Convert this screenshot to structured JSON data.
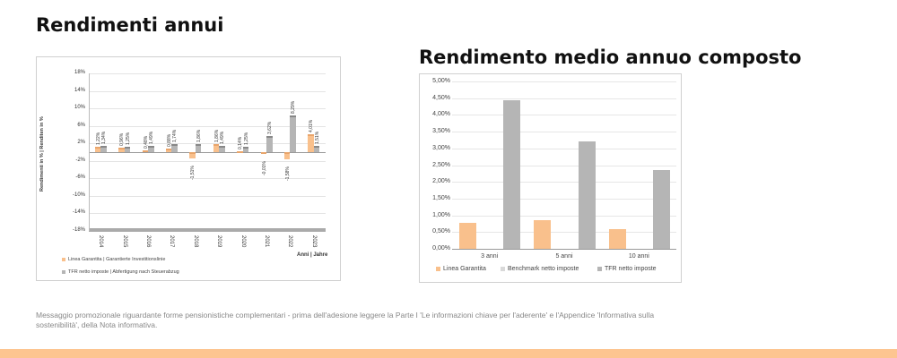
{
  "titles": {
    "left": "Rendimenti annui",
    "right": "Rendimento medio annuo composto"
  },
  "footer": {
    "text": "Messaggio promozionale riguardante forme pensionistiche complementari - prima dell'adesione leggere la Parte I 'Le informazioni chiave per l'aderente' e l'Appendice 'Informativa sulla sostenibilità', della Nota informativa."
  },
  "colors": {
    "orange": "#f9c08c",
    "grey": "#b5b5b5",
    "light_grey": "#d9d9d9",
    "bottom_bar": "#fdc590"
  },
  "chart_data": [
    {
      "type": "bar",
      "title": "Rendimenti annui",
      "ylabel": "Rendimenti in % | Renditen in %",
      "xlabel": "Anni | Jahre",
      "ylim": [
        -18,
        18
      ],
      "yticks": [
        "18%",
        "14%",
        "10%",
        "6%",
        "2%",
        "-2%",
        "-6%",
        "-10%",
        "-14%",
        "-18%"
      ],
      "categories": [
        "2014",
        "2015",
        "2016",
        "2017",
        "2018",
        "2019",
        "2020",
        "2021",
        "2022",
        "2023"
      ],
      "series": [
        {
          "name": "Linea Garantita | Garantierte Investitionslinie",
          "values": [
            1.22,
            0.96,
            0.48,
            0.88,
            -1.51,
            1.86,
            0.14,
            -0.01,
            -1.58,
            4.01
          ],
          "labels": [
            "1,22%",
            "0,96%",
            "0,48%",
            "0,88%",
            "-1,51%",
            "1,86%",
            "0,14%",
            "-0,01%",
            "-1,58%",
            "4,01%"
          ]
        },
        {
          "name": "TFR netto imposte | Abfertigung nach Steuerabzug",
          "values": [
            1.34,
            1.25,
            1.49,
            1.74,
            1.86,
            1.49,
            1.25,
            3.62,
            8.29,
            1.51
          ],
          "labels": [
            "1,34%",
            "1,25%",
            "1,49%",
            "1,74%",
            "1,86%",
            "1,49%",
            "1,25%",
            "3,62%",
            "8,29%",
            "1,51%"
          ]
        }
      ],
      "legend_position": "bottom",
      "grid": true
    },
    {
      "type": "bar",
      "title": "Rendimento medio annuo composto",
      "ylim": [
        0,
        5
      ],
      "yticks": [
        "5,00%",
        "4,50%",
        "4,00%",
        "3,50%",
        "3,00%",
        "2,50%",
        "2,00%",
        "1,50%",
        "1,00%",
        "0,50%",
        "0,00%"
      ],
      "categories": [
        "3 anni",
        "5 anni",
        "10 anni"
      ],
      "series": [
        {
          "name": "Linea Garantita",
          "values": [
            0.77,
            0.86,
            0.59
          ]
        },
        {
          "name": "Benchmark netto imposte",
          "values": [
            0,
            0,
            0
          ]
        },
        {
          "name": "TFR netto imposte",
          "values": [
            4.45,
            3.21,
            2.36
          ]
        }
      ],
      "legend_position": "bottom",
      "grid": true
    }
  ]
}
